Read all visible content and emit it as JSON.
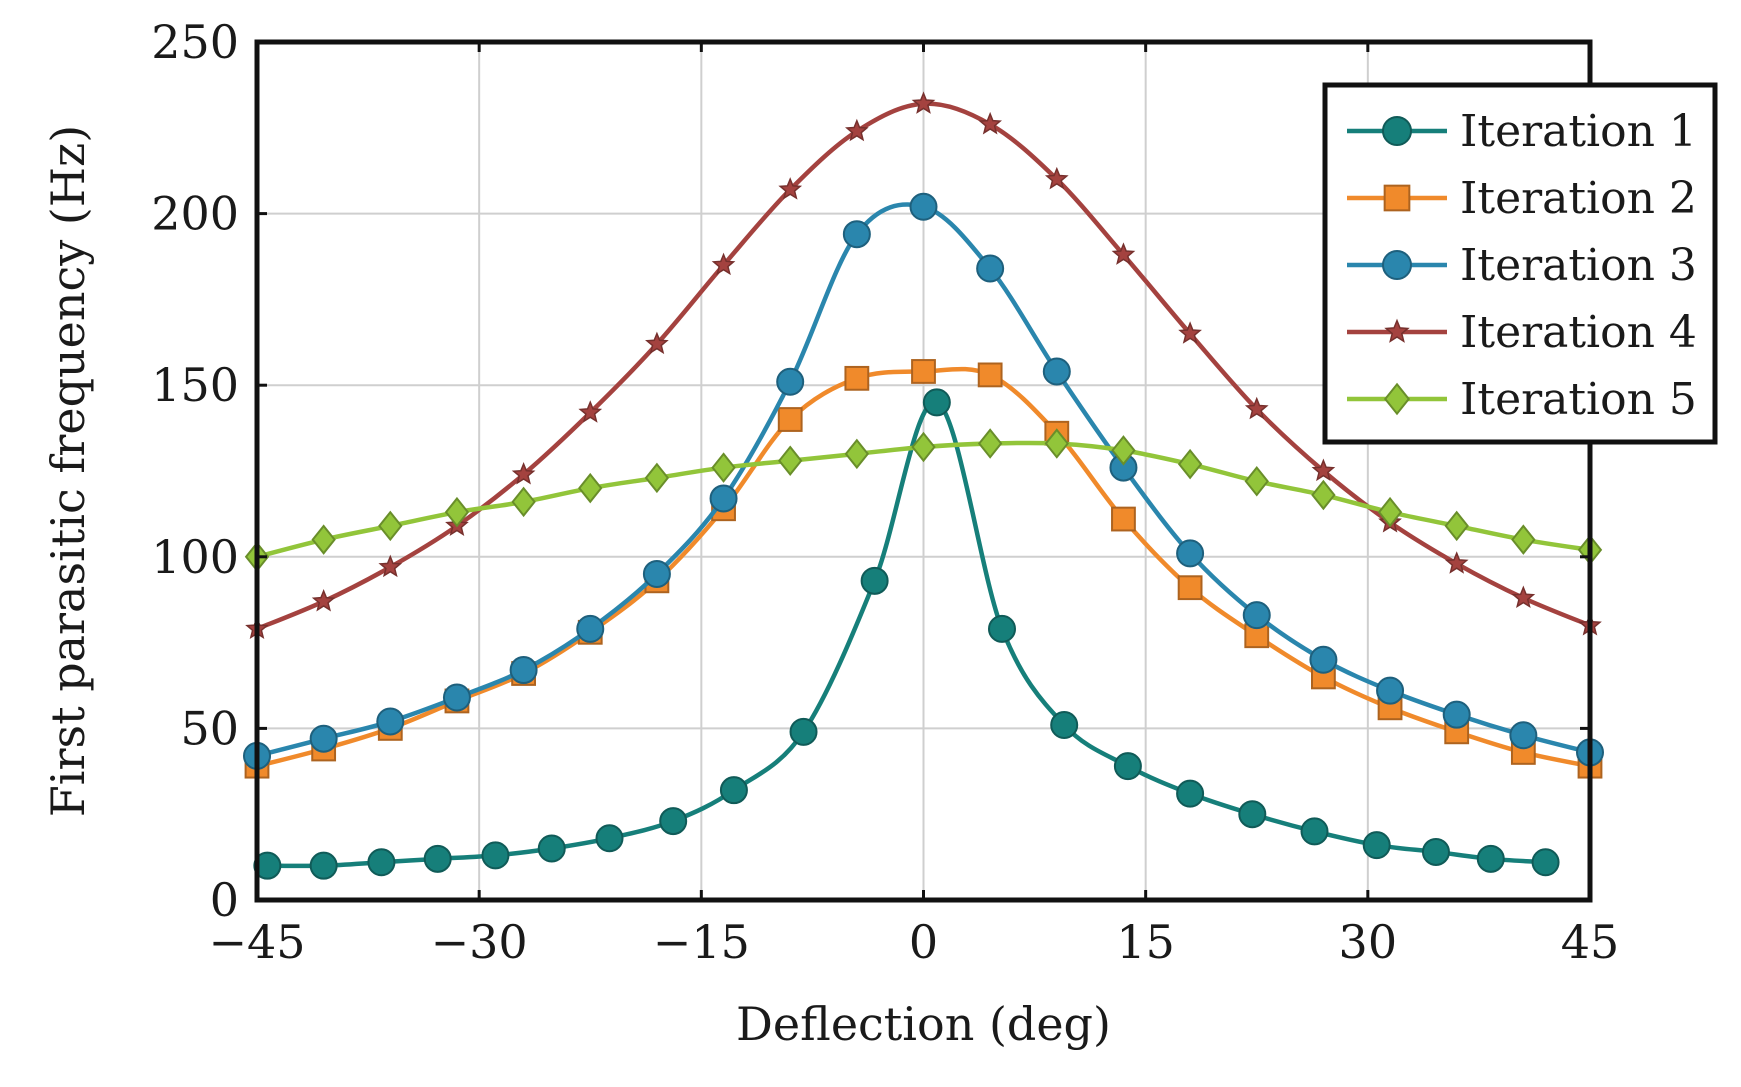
{
  "chart_data": {
    "type": "line",
    "title": "",
    "xlabel": "Deflection (deg)",
    "ylabel": "First parasitic frequency (Hz)",
    "xlim": [
      -45,
      45
    ],
    "ylim": [
      0,
      250
    ],
    "xticks": [
      -45,
      -30,
      -15,
      0,
      15,
      30,
      45
    ],
    "xtick_labels": [
      "−45",
      "−30",
      "−15",
      "0",
      "15",
      "30",
      "45"
    ],
    "yticks": [
      0,
      50,
      100,
      150,
      200,
      250
    ],
    "ytick_labels": [
      "0",
      "50",
      "100",
      "150",
      "200",
      "250"
    ],
    "grid": true,
    "legend_position": "top-right",
    "series": [
      {
        "name": "Iteration 1",
        "color": "#167f7a",
        "marker": "circle",
        "x": [
          -44.3,
          -40.5,
          -36.6,
          -32.8,
          -28.9,
          -25.1,
          -21.2,
          -16.9,
          -12.8,
          -8.1,
          -3.3,
          0.9,
          5.3,
          9.5,
          13.8,
          18,
          22.2,
          26.4,
          30.6,
          34.6,
          38.3,
          42
        ],
        "y": [
          10,
          10,
          11,
          12,
          13,
          15,
          18,
          23,
          32,
          49,
          93,
          145,
          79,
          51,
          39,
          31,
          25,
          20,
          16,
          14,
          12,
          11
        ]
      },
      {
        "name": "Iteration 2",
        "color": "#f08a2b",
        "marker": "square",
        "x": [
          -45,
          -40.5,
          -36,
          -31.5,
          -27,
          -22.5,
          -18,
          -13.5,
          -9,
          -4.5,
          0,
          4.5,
          9,
          13.5,
          18,
          22.5,
          27,
          31.5,
          36,
          40.5,
          45
        ],
        "y": [
          39,
          44,
          50,
          58,
          66,
          78,
          93,
          114,
          140,
          152,
          154,
          153,
          136,
          111,
          91,
          77,
          65,
          56,
          49,
          43,
          39
        ]
      },
      {
        "name": "Iteration 3",
        "color": "#2a86ad",
        "marker": "circle",
        "x": [
          -45,
          -40.5,
          -36,
          -31.5,
          -27,
          -22.5,
          -18,
          -13.5,
          -9,
          -4.5,
          0,
          4.5,
          9,
          13.5,
          18,
          22.5,
          27,
          31.5,
          36,
          40.5,
          45
        ],
        "y": [
          42,
          47,
          52,
          59,
          67,
          79,
          95,
          117,
          151,
          194,
          202,
          184,
          154,
          126,
          101,
          83,
          70,
          61,
          54,
          48,
          43
        ]
      },
      {
        "name": "Iteration 4",
        "color": "#a4423f",
        "marker": "star",
        "x": [
          -45,
          -40.5,
          -36,
          -31.5,
          -27,
          -22.5,
          -18,
          -13.5,
          -9,
          -4.5,
          0,
          4.5,
          9,
          13.5,
          18,
          22.5,
          27,
          31.5,
          36,
          40.5,
          45
        ],
        "y": [
          79,
          87,
          97,
          109,
          124,
          142,
          162,
          185,
          207,
          224,
          232,
          226,
          210,
          188,
          165,
          143,
          125,
          110,
          98,
          88,
          80
        ]
      },
      {
        "name": "Iteration 5",
        "color": "#92c53a",
        "marker": "diamond",
        "x": [
          -45,
          -40.5,
          -36,
          -31.5,
          -27,
          -22.5,
          -18,
          -13.5,
          -9,
          -4.5,
          0,
          4.5,
          9,
          13.5,
          18,
          22.5,
          27,
          31.5,
          36,
          40.5,
          45
        ],
        "y": [
          100,
          105,
          109,
          113,
          116,
          120,
          123,
          126,
          128,
          130,
          132,
          133,
          133,
          131,
          127,
          122,
          118,
          113,
          109,
          105,
          102
        ]
      }
    ]
  }
}
